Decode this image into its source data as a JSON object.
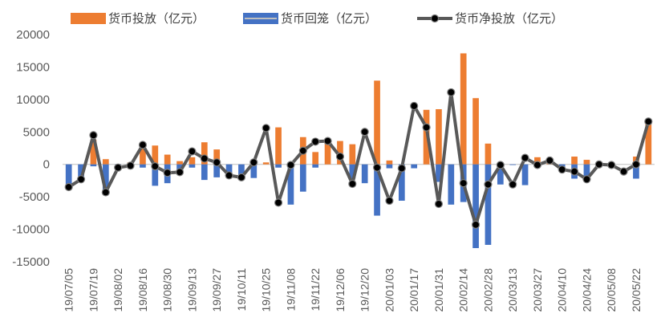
{
  "chart_data": {
    "type": "bar+line",
    "title": "",
    "xlabel": "",
    "ylabel": "",
    "ylim": [
      -15000,
      20000
    ],
    "yticks": [
      20000,
      15000,
      10000,
      5000,
      0,
      -5000,
      -10000,
      -15000
    ],
    "grid": false,
    "legend_placement": "top",
    "series": [
      {
        "name": "货币投放（亿元）",
        "kind": "bar",
        "color": "#ED7D31",
        "values": [
          0,
          0,
          3800,
          800,
          0,
          300,
          2900,
          2900,
          1500,
          500,
          1100,
          3400,
          2300,
          0,
          0,
          0,
          300,
          5700,
          0,
          4200,
          1900,
          3300,
          3600,
          3100,
          0,
          12900,
          600,
          0,
          0,
          8400,
          8500,
          0,
          17100,
          10200,
          3200,
          0,
          0,
          0,
          1100,
          600,
          0,
          1200,
          700,
          0,
          0,
          0,
          1200,
          6600
        ]
      },
      {
        "name": "货币回笼（亿元）",
        "kind": "bar",
        "color": "#4472C4",
        "values": [
          -3600,
          -2400,
          -300,
          -4400,
          -700,
          0,
          -500,
          -3300,
          -2900,
          -1200,
          -500,
          -2400,
          -2000,
          -1500,
          -1900,
          -2100,
          0,
          -500,
          -6200,
          -4200,
          -500,
          0,
          0,
          -2200,
          -2900,
          -7900,
          -600,
          -5600,
          -600,
          0,
          -2700,
          -6200,
          -5800,
          -12900,
          -12400,
          -3100,
          -100,
          -3200,
          -100,
          0,
          -700,
          -2200,
          -2700,
          0,
          0,
          0,
          -2200,
          0
        ]
      },
      {
        "name": "货币净投放（亿元）",
        "kind": "line",
        "color": "#595959",
        "values": [
          -3500,
          -2300,
          4500,
          -4300,
          -500,
          -200,
          3000,
          -300,
          -1300,
          -1200,
          2000,
          900,
          300,
          -1700,
          -2000,
          300,
          5600,
          -5900,
          -100,
          2100,
          3500,
          3600,
          1200,
          -3000,
          5000,
          -500,
          -5600,
          -600,
          9000,
          5700,
          -6100,
          11100,
          -2900,
          -9300,
          -3100,
          -100,
          -3100,
          1000,
          -100,
          600,
          -800,
          -1100,
          -2300,
          0,
          -100,
          -1100,
          0,
          6600
        ]
      }
    ],
    "categories": [
      "19/07/05",
      "19/07/12",
      "19/07/19",
      "19/07/26",
      "19/08/02",
      "19/08/09",
      "19/08/16",
      "19/08/23",
      "19/08/30",
      "19/09/06",
      "19/09/13",
      "19/09/20",
      "19/09/27",
      "19/10/04",
      "19/10/11",
      "19/10/18",
      "19/10/25",
      "19/11/01",
      "19/11/08",
      "19/11/15",
      "19/11/22",
      "19/11/29",
      "19/12/06",
      "19/12/13",
      "19/12/20",
      "19/12/27",
      "20/01/03",
      "20/01/10",
      "20/01/17",
      "20/01/24",
      "20/01/31",
      "20/02/07",
      "20/02/14",
      "20/02/21",
      "20/02/28",
      "20/03/06",
      "20/03/13",
      "20/03/20",
      "20/03/27",
      "20/04/03",
      "20/04/10",
      "20/04/17",
      "20/04/24",
      "20/05/01",
      "20/05/08",
      "20/05/15",
      "20/05/22",
      "20/05/29"
    ],
    "visible_x_labels": [
      "19/07/05",
      "19/07/19",
      "19/08/02",
      "19/08/16",
      "19/08/30",
      "19/09/13",
      "19/09/27",
      "19/10/11",
      "19/10/25",
      "19/11/08",
      "19/11/22",
      "19/12/06",
      "19/12/20",
      "20/01/03",
      "20/01/17",
      "20/01/31",
      "20/02/14",
      "20/02/28",
      "20/03/13",
      "20/03/27",
      "20/04/10",
      "20/04/24",
      "20/05/08",
      "20/05/22"
    ]
  }
}
